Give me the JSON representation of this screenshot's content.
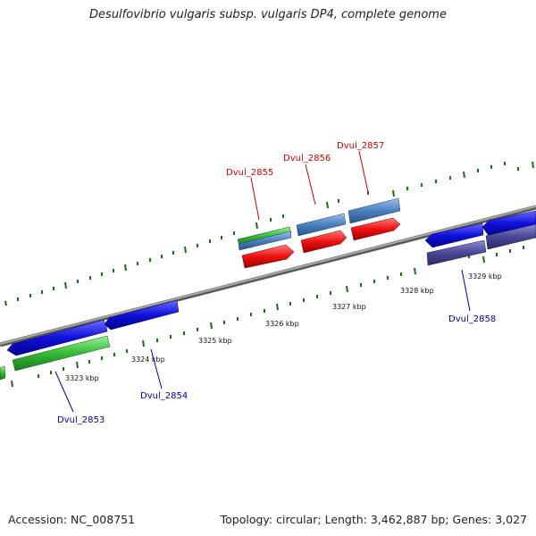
{
  "title": "Desulfovibrio vulgaris subsp. vulgaris DP4, complete genome",
  "footer": {
    "accession": "Accession: NC_008751",
    "summary": "Topology: circular; Length: 3,462,887 bp; Genes: 3,027"
  },
  "kbp_labels": [
    "3323 kbp",
    "3324 kbp",
    "3325 kbp",
    "3326 kbp",
    "3327 kbp",
    "3328 kbp",
    "3329 kbp"
  ],
  "gene_labels": {
    "dvul_2853": "Dvul_2853",
    "dvul_2854": "Dvul_2854",
    "dvul_2855": "Dvul_2855",
    "dvul_2856": "Dvul_2856",
    "dvul_2857": "Dvul_2857",
    "dvul_2858": "Dvul_2858"
  },
  "colors": {
    "backbone": "#808080",
    "tick": "#1a6e1a",
    "cds_blue": "#1010dd",
    "cds_green": "#33bb33",
    "cds_red": "#ee1111",
    "cds_steel": "#4a7fc0",
    "cds_slate": "#4a4896",
    "label_red": "#cc0000",
    "label_blue": "#0000aa"
  }
}
